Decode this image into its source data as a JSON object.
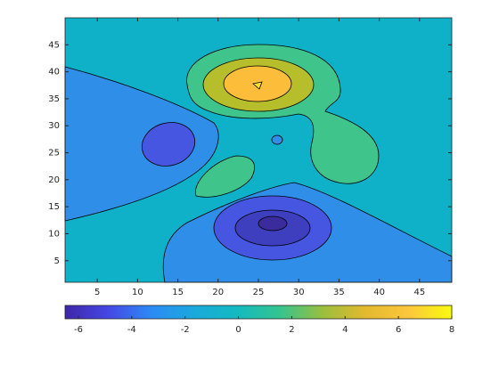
{
  "chart_data": {
    "type": "contour",
    "xlim": [
      1,
      49
    ],
    "ylim": [
      1,
      50
    ],
    "xticks": [
      5,
      10,
      15,
      20,
      25,
      30,
      35,
      40,
      45
    ],
    "yticks": [
      5,
      10,
      15,
      20,
      25,
      30,
      35,
      40,
      45
    ],
    "levels": [
      -6,
      -4,
      -2,
      0,
      2,
      4,
      6,
      8
    ],
    "band_colors": [
      "#3b2c9e",
      "#3d3fbf",
      "#4656e0",
      "#2f8ee8",
      "#0fb1c8",
      "#3fc58c",
      "#b6be2c",
      "#fbbd3a",
      "#f7e22e"
    ],
    "colorbar": {
      "clim": [
        -6.5,
        8
      ],
      "ticks": [
        -6,
        -4,
        -2,
        0,
        2,
        4,
        6,
        8
      ],
      "colormap": [
        "#3e26a8",
        "#4547e4",
        "#2c8af5",
        "#1aa9dc",
        "#13bac0",
        "#35c48f",
        "#9abf3e",
        "#e4b92e",
        "#fcc73c",
        "#f9fb0e"
      ]
    }
  }
}
